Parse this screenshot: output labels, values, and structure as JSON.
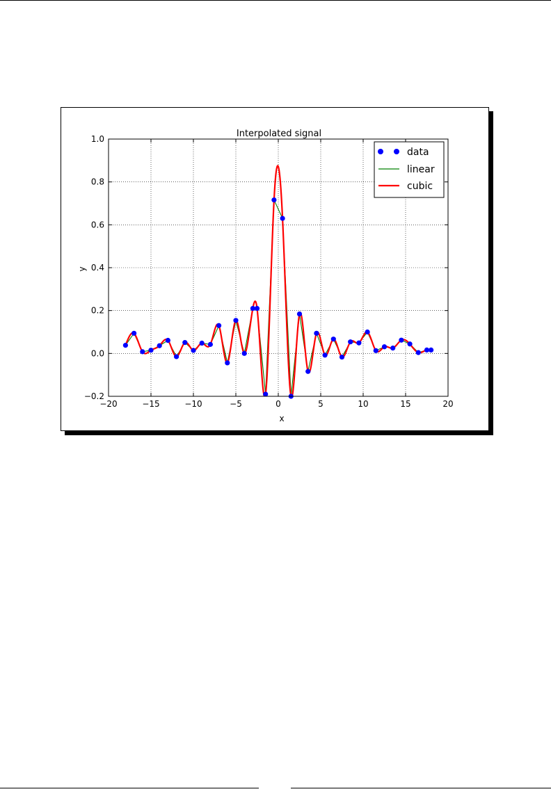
{
  "chart_data": {
    "type": "line",
    "title": "Interpolated signal",
    "xlabel": "x",
    "ylabel": "y",
    "xlim": [
      -20,
      20
    ],
    "ylim": [
      -0.2,
      1.0
    ],
    "xticks": [
      -20,
      -15,
      -10,
      -5,
      0,
      5,
      10,
      15,
      20
    ],
    "yticks": [
      -0.2,
      0.0,
      0.2,
      0.4,
      0.6,
      0.8,
      1.0
    ],
    "xtick_labels": [
      "−20",
      "−15",
      "−10",
      "−5",
      "0",
      "5",
      "10",
      "15",
      "20"
    ],
    "ytick_labels": [
      "−0.2",
      "0.0",
      "0.2",
      "0.4",
      "0.6",
      "0.8",
      "1.0"
    ],
    "grid": true,
    "legend_position": "top-right",
    "x": [
      -18.0,
      -17.0,
      -16.0,
      -15.0,
      -14.0,
      -13.0,
      -12.0,
      -11.0,
      -10.0,
      -9.0,
      -8.0,
      -7.0,
      -6.0,
      -5.0,
      -4.0,
      -3.0,
      -2.0,
      -1.0,
      0.0,
      1.0,
      2.0,
      3.0,
      4.0,
      5.0,
      6.0,
      7.0,
      8.0,
      9.0,
      10.0,
      11.0,
      12.0,
      13.0,
      14.0,
      15.0,
      16.0,
      17.0,
      18.0
    ],
    "series": [
      {
        "name": "data",
        "style": "markers",
        "color": "#0000ff",
        "x": [
          -18.0,
          -17.0,
          -16.0,
          -15.0,
          -14.0,
          -13.0,
          -12.0,
          -11.0,
          -10.0,
          -9.0,
          -8.0,
          -7.0,
          -6.0,
          -5.0,
          -4.0,
          -3.0,
          -2.5,
          -1.5,
          -0.5,
          0.5,
          1.5,
          2.5,
          3.5,
          4.5,
          5.5,
          6.5,
          7.5,
          8.5,
          9.5,
          10.5,
          11.5,
          12.5,
          13.5,
          14.5,
          15.5,
          16.5,
          17.5,
          18.0
        ],
        "values": [
          0.038,
          0.094,
          0.008,
          0.015,
          0.036,
          0.061,
          -0.015,
          0.051,
          0.014,
          0.048,
          0.042,
          0.13,
          -0.044,
          0.154,
          0.0,
          0.21,
          0.21,
          -0.19,
          0.716,
          0.63,
          -0.2,
          0.184,
          -0.084,
          0.094,
          -0.008,
          0.067,
          -0.017,
          0.054,
          0.049,
          0.1,
          0.013,
          0.031,
          0.025,
          0.062,
          0.044,
          0.004,
          0.016,
          0.016
        ]
      },
      {
        "name": "linear",
        "style": "line",
        "color": "#008000"
      },
      {
        "name": "cubic",
        "style": "line",
        "color": "#ff0000"
      }
    ]
  }
}
